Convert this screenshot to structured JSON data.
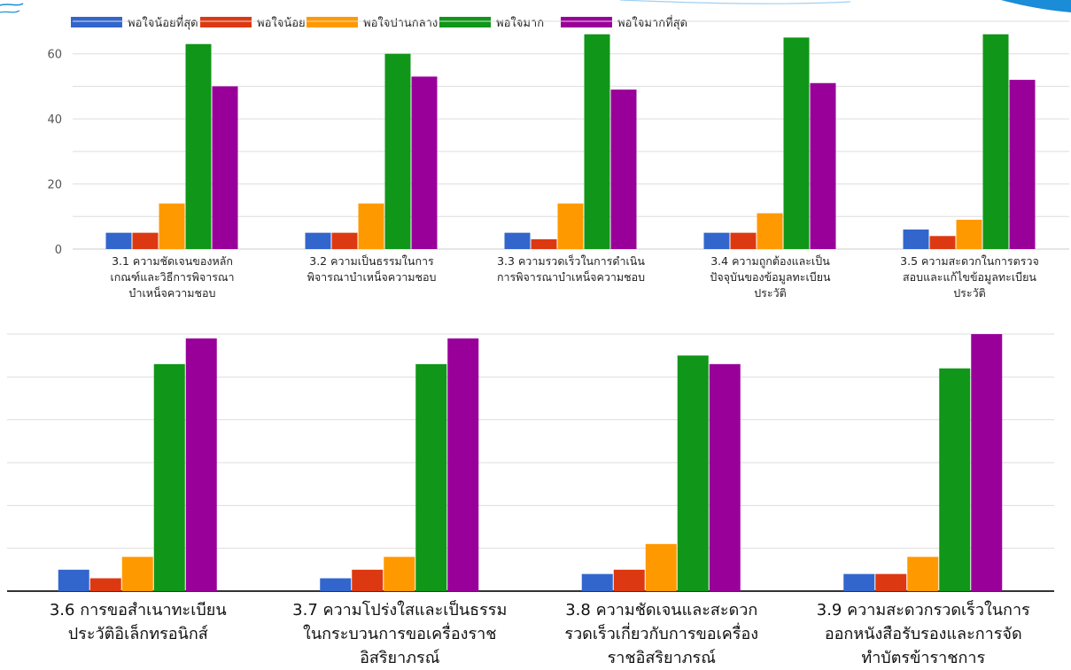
{
  "colors": {
    "blue": "#3366cc",
    "red": "#dc3912",
    "orange": "#ff9900",
    "green": "#109618",
    "purple": "#990099",
    "decor": "#1a8cd8"
  },
  "legend": [
    "พอใจน้อยที่สุด",
    "พอใจน้อย",
    "พอใจปานกลาง",
    "พอใจมาก",
    "พอใจมากที่สุด"
  ],
  "chart_data": [
    {
      "type": "bar",
      "categories": [
        [
          "3.1 ความชัดเจนของหลัก",
          "เกณฑ์และวิธีการพิจารณา",
          "บำเหน็จความชอบ"
        ],
        [
          "3.2 ความเป็นธรรมในการ",
          "พิจารณาบำเหน็จความชอบ"
        ],
        [
          "3.3 ความรวดเร็วในการดำเนิน",
          "การพิจารณาบำเหน็จความชอบ"
        ],
        [
          "3.4 ความถูกต้องและเป็น",
          "ปัจจุบันของข้อมูลทะเบียน",
          "ประวัติ"
        ],
        [
          "3.5 ความสะดวกในการตรวจ",
          "สอบและแก้ไขข้อมูลทะเบียน",
          "ประวัติ"
        ]
      ],
      "series": [
        {
          "name": "พอใจน้อยที่สุด",
          "values": [
            5,
            5,
            5,
            5,
            6
          ]
        },
        {
          "name": "พอใจน้อย",
          "values": [
            5,
            5,
            3,
            5,
            4
          ]
        },
        {
          "name": "พอใจปานกลาง",
          "values": [
            14,
            14,
            14,
            11,
            9
          ]
        },
        {
          "name": "พอใจมาก",
          "values": [
            63,
            60,
            66,
            65,
            66
          ]
        },
        {
          "name": "พอใจมากที่สุด",
          "values": [
            50,
            53,
            49,
            51,
            52
          ]
        }
      ],
      "yticks": [
        "0",
        "20",
        "40",
        "60"
      ],
      "ylim": [
        0,
        70
      ],
      "legend_position": "top",
      "grid": true
    },
    {
      "type": "bar",
      "categories": [
        [
          "3.6 การขอสำเนาทะเบียน",
          "ประวัติอิเล็กทรอนิกส์"
        ],
        [
          "3.7 ความโปร่งใสและเป็นธรรม",
          "ในกระบวนการขอเครื่องราช",
          "อิสริยาภรณ์"
        ],
        [
          "3.8 ความชัดเจนและสะดวก",
          "รวดเร็วเกี่ยวกับการขอเครื่อง",
          "ราชอิสริยาภรณ์"
        ],
        [
          "3.9 ความสะดวกรวดเร็วในการ",
          "ออกหนังสือรับรองและการจัด",
          "ทำบัตรข้าราชการ"
        ]
      ],
      "series": [
        {
          "name": "พอใจน้อยที่สุด",
          "values": [
            5,
            3,
            4,
            4
          ]
        },
        {
          "name": "พอใจน้อย",
          "values": [
            3,
            5,
            5,
            4
          ]
        },
        {
          "name": "พอใจปานกลาง",
          "values": [
            8,
            8,
            11,
            8
          ]
        },
        {
          "name": "พอใจมาก",
          "values": [
            53,
            53,
            55,
            52
          ]
        },
        {
          "name": "พอใจมากที่สุด",
          "values": [
            59,
            59,
            53,
            60
          ]
        }
      ],
      "ylim": [
        0,
        60
      ],
      "grid": true
    }
  ]
}
